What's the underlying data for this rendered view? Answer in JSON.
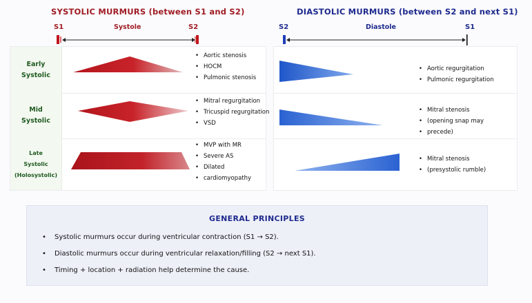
{
  "systolic": {
    "title": "SYSTOLIC MURMURS (between S1 and S2)",
    "s1": "S1",
    "s2": "S2",
    "phase": "Systole",
    "color": "#b3151c",
    "rows": [
      {
        "label_lines": [
          "Early",
          "Systolic"
        ],
        "shape": "diamond-early",
        "items": [
          "Aortic stenosis",
          "HOCM",
          "Pulmonic stenosis"
        ]
      },
      {
        "label_lines": [
          "Mid",
          "Systolic"
        ],
        "shape": "diamond-mid",
        "items": [
          "Mitral regurgitation",
          "Tricuspid regurgitation",
          "VSD"
        ]
      },
      {
        "label_lines": [
          "Late",
          "Systolic",
          "(Holosystolic)"
        ],
        "shape": "plateau",
        "items": [
          "MVP with MR",
          "Severe AS",
          "Dilated",
          "cardiomyopathy"
        ]
      }
    ]
  },
  "diastolic": {
    "title": "DIASTOLIC MURMURS (between S2 and next S1)",
    "s2": "S2",
    "s1": "S1",
    "phase": "Diastole",
    "color": "#2f68d8",
    "rows": [
      {
        "shape": "decrescendo-early",
        "items": [
          "Aortic regurgitation",
          "Pulmonic regurgitation"
        ]
      },
      {
        "shape": "decrescendo-mid",
        "items": [
          "Mitral stenosis",
          "(opening snap may",
          "precede)"
        ]
      },
      {
        "shape": "crescendo",
        "items": [
          "Mitral stenosis",
          "(presystolic rumble)"
        ]
      }
    ]
  },
  "principles": {
    "title": "GENERAL PRINCIPLES",
    "items": [
      "Systolic murmurs occur during ventricular contraction (S1 → S2).",
      "Diastolic murmurs occur during ventricular relaxation/filling (S2 → next S1).",
      "Timing + location + radiation help determine the cause."
    ]
  }
}
